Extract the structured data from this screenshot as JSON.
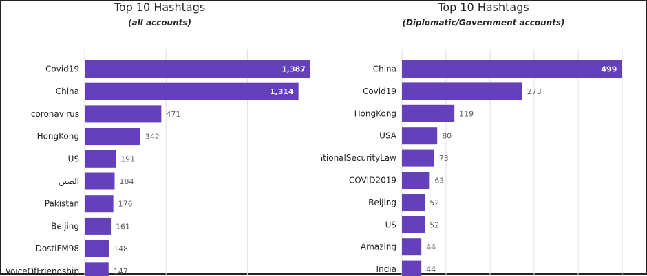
{
  "chart_data": [
    {
      "type": "bar",
      "orientation": "horizontal",
      "title": "Top 10 Hashtags",
      "subtitle": "(all accounts)",
      "categories": [
        "Covid19",
        "China",
        "coronavirus",
        "HongKong",
        "US",
        "الصين",
        "Pakistan",
        "Beijing",
        "DostiFM98",
        "VoiceOfFriendship"
      ],
      "values": [
        1387,
        1314,
        471,
        342,
        191,
        184,
        176,
        161,
        148,
        147
      ],
      "value_labels": [
        "1,387",
        "1,314",
        "471",
        "342",
        "191",
        "184",
        "176",
        "161",
        "148",
        "147"
      ],
      "xlim": [
        0,
        1400
      ],
      "grid": true,
      "colors": {
        "bar": "#6540bb",
        "label_inside": "#ffffff",
        "label_outside": "#605e5c",
        "grid": "#e1dfdd"
      }
    },
    {
      "type": "bar",
      "orientation": "horizontal",
      "title": "Top 10 Hashtags",
      "subtitle": "(Diplomatic/Government accounts)",
      "categories": [
        "China",
        "Covid19",
        "HongKong",
        "USA",
        "NationalSecurityLaw",
        "COVID2019",
        "Beijing",
        "US",
        "Amazing",
        "India"
      ],
      "values": [
        499,
        273,
        119,
        80,
        73,
        63,
        52,
        52,
        44,
        44
      ],
      "value_labels": [
        "499",
        "273",
        "119",
        "80",
        "73",
        "63",
        "52",
        "52",
        "44",
        "44"
      ],
      "xlim": [
        0,
        500
      ],
      "grid": true,
      "colors": {
        "bar": "#6540bb",
        "label_inside": "#ffffff",
        "label_outside": "#605e5c",
        "grid": "#e1dfdd"
      }
    }
  ]
}
